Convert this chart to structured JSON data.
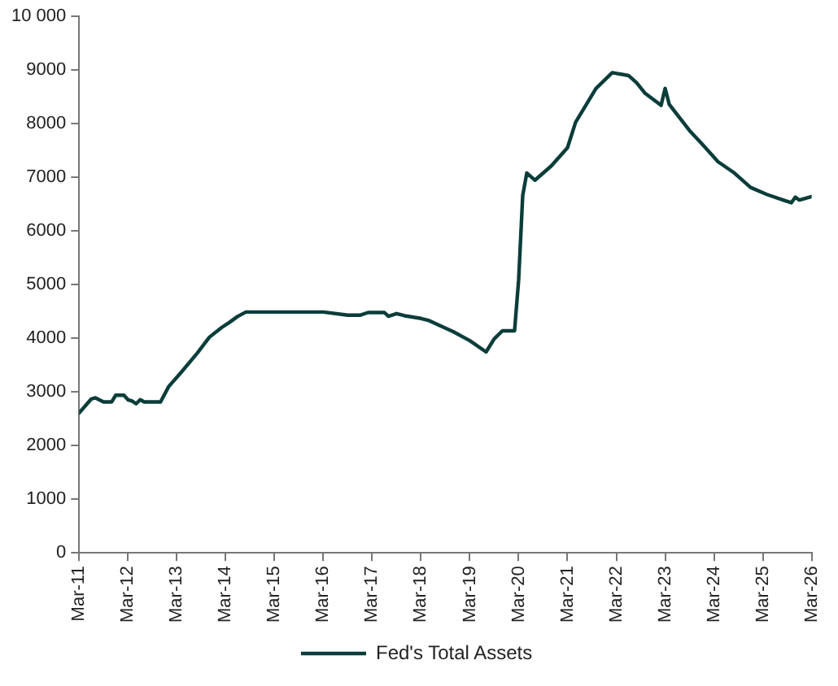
{
  "chart_data": {
    "type": "line",
    "x": [
      "2011-03",
      "2011-06",
      "2011-07",
      "2011-09",
      "2011-11",
      "2011-12",
      "2012-02",
      "2012-03",
      "2012-04",
      "2012-05",
      "2012-06",
      "2012-07",
      "2012-11",
      "2013-01",
      "2013-04",
      "2013-08",
      "2013-11",
      "2014-02",
      "2014-04",
      "2014-06",
      "2014-08",
      "2016-03",
      "2016-09",
      "2016-12",
      "2017-02",
      "2017-06",
      "2017-07",
      "2017-09",
      "2017-11",
      "2018-03",
      "2018-05",
      "2018-11",
      "2019-03",
      "2019-07",
      "2019-09",
      "2019-11",
      "2020-02",
      "2020-03",
      "2020-04",
      "2020-05",
      "2020-07",
      "2020-11",
      "2021-03",
      "2021-05",
      "2021-10",
      "2022-02",
      "2022-06",
      "2022-08",
      "2022-10",
      "2023-02",
      "2023-03",
      "2023-04",
      "2023-09",
      "2023-12",
      "2024-04",
      "2024-08",
      "2024-12",
      "2025-04",
      "2025-08",
      "2025-10",
      "2025-11",
      "2025-12",
      "2026-03"
    ],
    "series": [
      {
        "name": "Fed's Total Assets",
        "color": "#0b3d3a",
        "values": [
          2610,
          2870,
          2890,
          2815,
          2815,
          2940,
          2940,
          2855,
          2830,
          2780,
          2855,
          2815,
          2815,
          3100,
          3360,
          3720,
          4020,
          4200,
          4300,
          4410,
          4490,
          4490,
          4430,
          4430,
          4480,
          4480,
          4410,
          4460,
          4420,
          4370,
          4330,
          4120,
          3955,
          3745,
          3990,
          4140,
          4140,
          5090,
          6660,
          7080,
          6945,
          7210,
          7550,
          8025,
          8655,
          8950,
          8895,
          8760,
          8570,
          8340,
          8655,
          8360,
          7870,
          7625,
          7290,
          7080,
          6810,
          6680,
          6575,
          6525,
          6630,
          6575,
          6640
        ]
      }
    ],
    "xlim": [
      "2011-03",
      "2026-03"
    ],
    "xticks": [
      {
        "value": "2011-03",
        "label": "Mar-11"
      },
      {
        "value": "2012-03",
        "label": "Mar-12"
      },
      {
        "value": "2013-03",
        "label": "Mar-13"
      },
      {
        "value": "2014-03",
        "label": "Mar-14"
      },
      {
        "value": "2015-03",
        "label": "Mar-15"
      },
      {
        "value": "2016-03",
        "label": "Mar-16"
      },
      {
        "value": "2017-03",
        "label": "Mar-17"
      },
      {
        "value": "2018-03",
        "label": "Mar-18"
      },
      {
        "value": "2019-03",
        "label": "Mar-19"
      },
      {
        "value": "2020-03",
        "label": "Mar-20"
      },
      {
        "value": "2021-03",
        "label": "Mar-21"
      },
      {
        "value": "2022-03",
        "label": "Mar-22"
      },
      {
        "value": "2023-03",
        "label": "Mar-23"
      },
      {
        "value": "2024-03",
        "label": "Mar-24"
      },
      {
        "value": "2025-03",
        "label": "Mar-25"
      },
      {
        "value": "2026-03",
        "label": "Mar-26"
      }
    ],
    "ylim": [
      0,
      10000
    ],
    "yticks": [
      0,
      1000,
      2000,
      3000,
      4000,
      5000,
      6000,
      7000,
      8000,
      9000,
      {
        "value": 10000,
        "label": "10 000"
      }
    ],
    "grid": false,
    "legend": "bottom",
    "marker": "none",
    "line_style": "solid"
  }
}
